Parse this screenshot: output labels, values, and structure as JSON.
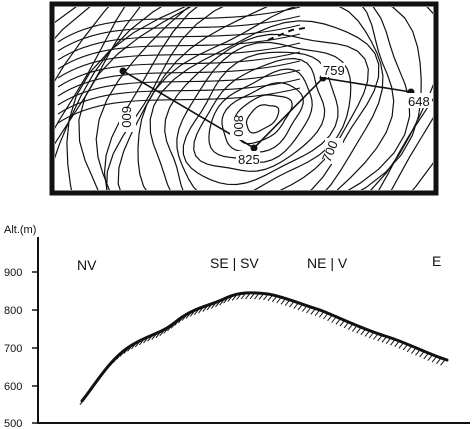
{
  "map": {
    "contour_labels": [
      "600",
      "800",
      "700"
    ],
    "point_labels": [
      "825",
      "759",
      "648"
    ]
  },
  "profile": {
    "y_axis_label": "Alt.(m)",
    "y_ticks": [
      "900",
      "800",
      "700",
      "600",
      "500"
    ],
    "direction_labels": [
      "NV",
      "SE | SV",
      "NE | V",
      "E"
    ]
  },
  "colors": {
    "ink": "#111111",
    "paper": "#ffffff"
  }
}
